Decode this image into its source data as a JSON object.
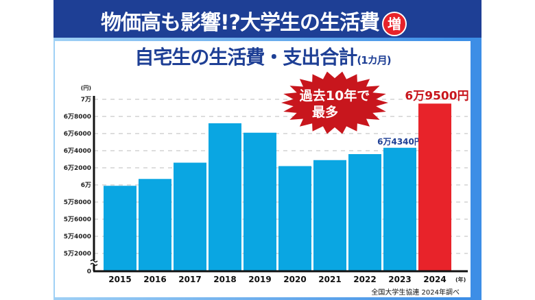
{
  "header": {
    "title": "物価高も影響!?大学生の生活費",
    "badge": "増"
  },
  "subtitle": {
    "main": "自宅生の生活費・支出合計",
    "note": "(1カ月)"
  },
  "callout": {
    "line1": "過去10年で",
    "line2": "最多"
  },
  "source": "全国大学生協連 2024年調べ",
  "colors": {
    "bar": "#0aa6e2",
    "highlight": "#e8232a",
    "banner": "#1e3f95"
  },
  "chart_data": {
    "type": "bar",
    "title": "自宅生の生活費・支出合計(1カ月)",
    "yunit": "(円)",
    "xunit": "(年)",
    "categories": [
      "2015",
      "2016",
      "2017",
      "2018",
      "2019",
      "2020",
      "2021",
      "2022",
      "2023",
      "2024"
    ],
    "values": [
      59900,
      60700,
      62600,
      67200,
      66100,
      62200,
      62900,
      63600,
      64340,
      69500
    ],
    "ylim": [
      52000,
      70000
    ],
    "axis_break": true,
    "yticks": [
      {
        "value": 70000,
        "label": "7万"
      },
      {
        "value": 68000,
        "label": "6万8000"
      },
      {
        "value": 66000,
        "label": "6万6000"
      },
      {
        "value": 64000,
        "label": "6万4000"
      },
      {
        "value": 62000,
        "label": "6万2000"
      },
      {
        "value": 60000,
        "label": "6万"
      },
      {
        "value": 58000,
        "label": "5万8000"
      },
      {
        "value": 56000,
        "label": "5万6000"
      },
      {
        "value": 54000,
        "label": "5万4000"
      },
      {
        "value": 52000,
        "label": "5万2000"
      },
      {
        "value": 0,
        "label": "0"
      }
    ],
    "data_labels": [
      {
        "category": "2023",
        "text": "6万4340円"
      },
      {
        "category": "2024",
        "text": "6万9500円"
      }
    ],
    "highlight_category": "2024",
    "grid": "dashed horizontal"
  }
}
